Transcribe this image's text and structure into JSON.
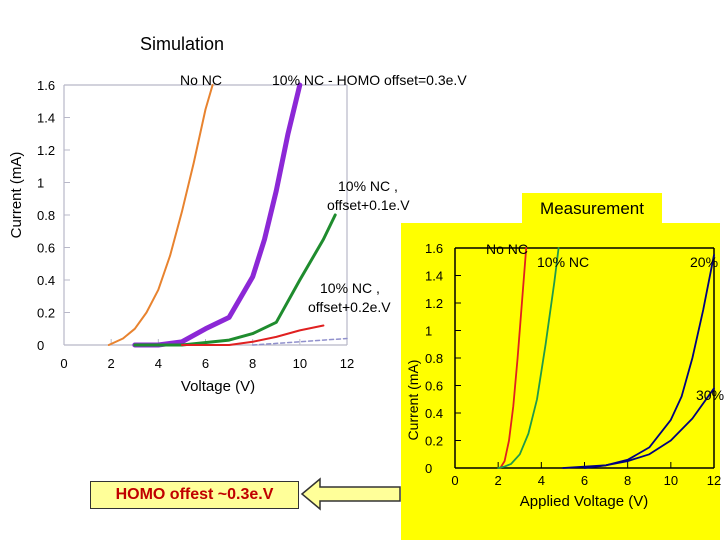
{
  "slide": {
    "simulation_title": "Simulation",
    "measurement_title": "Measurement",
    "homo_note": "HOMO offest ~0.3e.V",
    "colors": {
      "accent_yellow": "#ffff00",
      "note_fill": "#ffff99",
      "note_text": "#c00000"
    }
  },
  "chart_data": [
    {
      "type": "line",
      "title": "Simulation",
      "xlabel": "Voltage (V)",
      "ylabel": "Current (mA)",
      "xlim": [
        0,
        12
      ],
      "ylim": [
        0,
        1.6
      ],
      "x_ticks": [
        0,
        2,
        4,
        6,
        8,
        10,
        12
      ],
      "y_ticks": [
        0,
        0.2,
        0.4,
        0.6,
        0.8,
        1,
        1.2,
        1.4,
        1.6
      ],
      "grid": false,
      "annotations": [
        {
          "text": "No NC",
          "series": "No NC"
        },
        {
          "text": "10% NC - HOMO offset=0.3e.V",
          "series": "10% NC - HOMO offset=0.3e.V"
        },
        {
          "text": "10% NC ,",
          "text2": "offset+0.1e.V",
          "series": "10% NC , offset+0.1e.V"
        },
        {
          "text": "10% NC ,",
          "text2": "offset+0.2e.V",
          "series": "10% NC , offset+0.2e.V"
        }
      ],
      "series": [
        {
          "name": "No NC",
          "color": "#e8832f",
          "width": 2,
          "x": [
            1.9,
            2.5,
            3,
            3.5,
            4,
            4.5,
            5,
            5.5,
            6,
            6.3
          ],
          "y": [
            0.0,
            0.04,
            0.1,
            0.2,
            0.34,
            0.55,
            0.82,
            1.12,
            1.45,
            1.6
          ]
        },
        {
          "name": "10% NC - HOMO offset=0.3e.V",
          "color": "#8c28d6",
          "width": 5,
          "x": [
            3,
            4,
            5,
            6,
            7,
            8,
            8.5,
            9,
            9.5,
            10
          ],
          "y": [
            0.0,
            0.0,
            0.02,
            0.1,
            0.17,
            0.42,
            0.65,
            0.95,
            1.3,
            1.6
          ]
        },
        {
          "name": "10% NC , offset+0.1e.V",
          "color": "#1f8c2e",
          "width": 3,
          "x": [
            3,
            5,
            7,
            8,
            9,
            10,
            11,
            11.5
          ],
          "y": [
            0.0,
            0.0,
            0.03,
            0.07,
            0.14,
            0.4,
            0.65,
            0.8
          ]
        },
        {
          "name": "10% NC , offset+0.2e.V",
          "color": "#e02020",
          "width": 2,
          "x": [
            5,
            7,
            8,
            9,
            10,
            11
          ],
          "y": [
            0.0,
            0.0,
            0.02,
            0.05,
            0.09,
            0.12
          ]
        },
        {
          "name": "dashed",
          "color": "#9090cc",
          "width": 1.5,
          "dash": "4,3",
          "x": [
            8,
            9,
            10,
            11,
            12
          ],
          "y": [
            0.0,
            0.01,
            0.02,
            0.03,
            0.04
          ]
        }
      ]
    },
    {
      "type": "line",
      "title": "Measurement",
      "xlabel": "Applied Voltage (V)",
      "ylabel": "Current (mA)",
      "xlim": [
        0,
        12
      ],
      "ylim": [
        0,
        1.6
      ],
      "x_ticks": [
        0,
        2,
        4,
        6,
        8,
        10,
        12
      ],
      "y_ticks": [
        0,
        0.2,
        0.4,
        0.6,
        0.8,
        1,
        1.2,
        1.4,
        1.6
      ],
      "grid": false,
      "annotations": [
        {
          "text": "No NC",
          "series": "No NC"
        },
        {
          "text": "10% NC",
          "series": "10% NC"
        },
        {
          "text": "20%",
          "series": "20%"
        },
        {
          "text": "30%",
          "series": "30%"
        }
      ],
      "series": [
        {
          "name": "No NC",
          "color": "#e02020",
          "width": 1.8,
          "x": [
            2.1,
            2.3,
            2.5,
            2.7,
            2.9,
            3.1,
            3.3
          ],
          "y": [
            0.0,
            0.05,
            0.2,
            0.45,
            0.8,
            1.2,
            1.6
          ]
        },
        {
          "name": "10% NC",
          "color": "#1f9a4a",
          "width": 1.8,
          "x": [
            2.0,
            2.3,
            2.6,
            3.0,
            3.4,
            3.8,
            4.2,
            4.6,
            4.8
          ],
          "y": [
            0.0,
            0.01,
            0.03,
            0.1,
            0.25,
            0.5,
            0.9,
            1.35,
            1.6
          ]
        },
        {
          "name": "20%",
          "color": "#000080",
          "width": 1.8,
          "x": [
            6,
            7,
            8,
            9,
            10,
            10.5,
            11,
            11.5,
            12
          ],
          "y": [
            0.0,
            0.02,
            0.06,
            0.15,
            0.35,
            0.52,
            0.8,
            1.15,
            1.55
          ]
        },
        {
          "name": "30%",
          "color": "#000080",
          "width": 1.8,
          "x": [
            5,
            6,
            7,
            8,
            9,
            10,
            11,
            12
          ],
          "y": [
            0.0,
            0.01,
            0.02,
            0.05,
            0.1,
            0.2,
            0.36,
            0.58
          ]
        }
      ]
    }
  ]
}
